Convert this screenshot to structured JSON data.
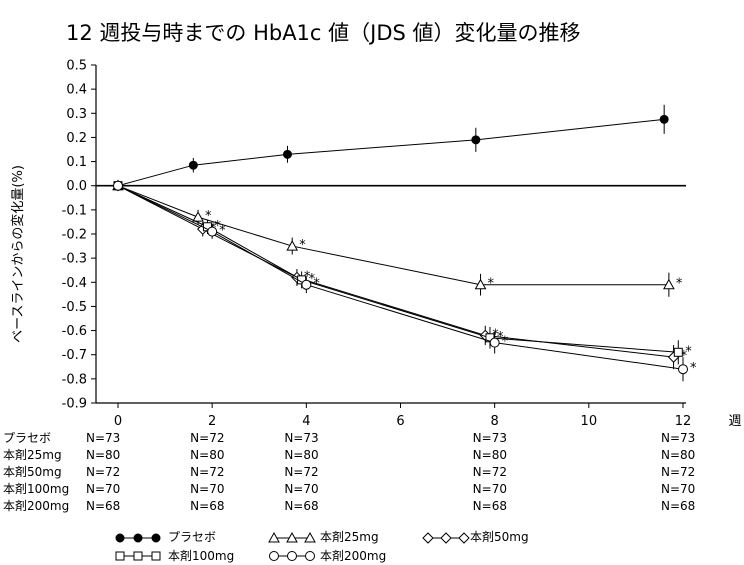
{
  "chart_data": {
    "type": "line",
    "title": "12 週投与時までの HbA1c 値（JDS 値）変化量の推移",
    "xlabel": "週",
    "ylabel": "ベースラインからの変化量(%)",
    "xlim": [
      0,
      12
    ],
    "ylim": [
      -0.9,
      0.5
    ],
    "xticks": [
      "0",
      "2",
      "4",
      "6",
      "8",
      "10",
      "12"
    ],
    "yticks": [
      "0.5",
      "0.4",
      "0.3",
      "0.2",
      "0.1",
      "0.0",
      "-0.1",
      "-0.2",
      "-0.3",
      "-0.4",
      "-0.5",
      "-0.6",
      "-0.7",
      "-0.8",
      "-0.9"
    ],
    "grid": false,
    "legend_position": "bottom",
    "series": [
      {
        "name": "プラセボ",
        "legend_glyph": "●—●—●",
        "marker": "filled-circle",
        "x": [
          0,
          1.6,
          3.6,
          7.6,
          11.6
        ],
        "y": [
          0.0,
          0.085,
          0.13,
          0.19,
          0.275
        ],
        "err": [
          0.01,
          0.03,
          0.035,
          0.05,
          0.06
        ],
        "sig": [
          false,
          false,
          false,
          false,
          false
        ]
      },
      {
        "name": "本剤25mg",
        "legend_glyph": "△—△—△",
        "marker": "triangle",
        "x": [
          0,
          1.7,
          3.7,
          7.7,
          11.7
        ],
        "y": [
          0.0,
          -0.13,
          -0.25,
          -0.41,
          -0.41
        ],
        "err": [
          0.01,
          0.03,
          0.035,
          0.045,
          0.05
        ],
        "sig": [
          false,
          true,
          true,
          true,
          true
        ]
      },
      {
        "name": "本剤50mg",
        "legend_glyph": "◇—◇—◇",
        "marker": "diamond",
        "x": [
          0,
          1.8,
          3.8,
          7.8,
          11.8
        ],
        "y": [
          0.0,
          -0.18,
          -0.38,
          -0.62,
          -0.71
        ],
        "err": [
          0.01,
          0.03,
          0.035,
          0.04,
          0.05
        ],
        "sig": [
          false,
          true,
          true,
          true,
          true
        ]
      },
      {
        "name": "本剤100mg",
        "legend_glyph": "□—□—□",
        "marker": "square",
        "x": [
          0,
          1.9,
          3.9,
          7.9,
          11.9
        ],
        "y": [
          0.0,
          -0.17,
          -0.39,
          -0.63,
          -0.69
        ],
        "err": [
          0.01,
          0.03,
          0.035,
          0.045,
          0.05
        ],
        "sig": [
          false,
          true,
          true,
          true,
          true
        ]
      },
      {
        "name": "本剤200mg",
        "legend_glyph": "○—○—○",
        "marker": "open-circle",
        "x": [
          0,
          2.0,
          4.0,
          8.0,
          12.0
        ],
        "y": [
          0.0,
          -0.19,
          -0.41,
          -0.65,
          -0.76
        ],
        "err": [
          0.01,
          0.03,
          0.035,
          0.045,
          0.05
        ],
        "sig": [
          false,
          true,
          true,
          true,
          true
        ]
      }
    ],
    "significance_marker": "*",
    "n_table": {
      "x": [
        0,
        2,
        4,
        8,
        12
      ],
      "rows": [
        {
          "label": "プラセボ",
          "values": [
            "N=73",
            "N=72",
            "N=73",
            "N=73",
            "N=73"
          ]
        },
        {
          "label": "本剤25mg",
          "values": [
            "N=80",
            "N=80",
            "N=80",
            "N=80",
            "N=80"
          ]
        },
        {
          "label": "本剤50mg",
          "values": [
            "N=72",
            "N=72",
            "N=72",
            "N=72",
            "N=72"
          ]
        },
        {
          "label": "本剤100mg",
          "values": [
            "N=70",
            "N=70",
            "N=70",
            "N=70",
            "N=70"
          ]
        },
        {
          "label": "本剤200mg",
          "values": [
            "N=68",
            "N=68",
            "N=68",
            "N=68",
            "N=68"
          ]
        }
      ]
    }
  }
}
